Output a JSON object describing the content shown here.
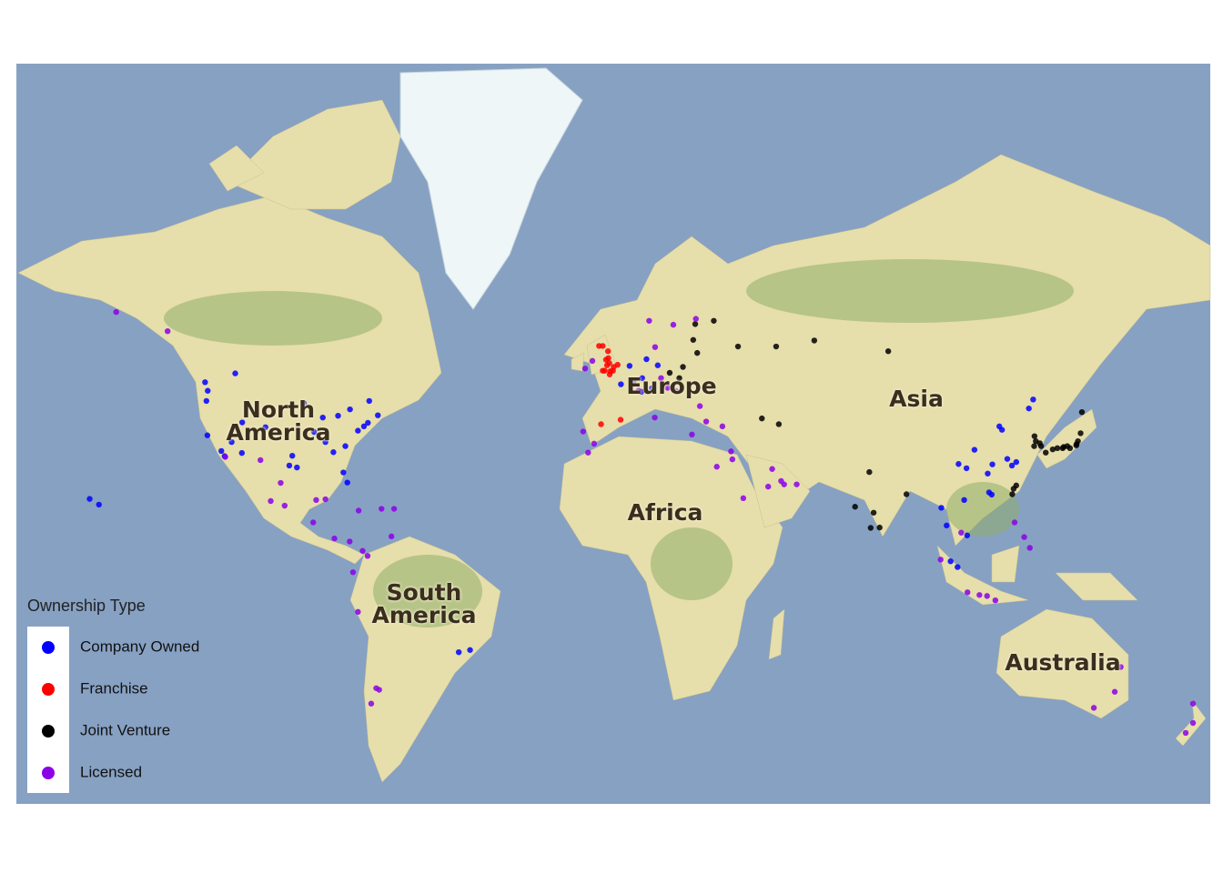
{
  "chart_data": {
    "type": "scatter",
    "projection": "mercator",
    "xlim": [
      -180,
      180
    ],
    "ylim": [
      -57,
      82
    ],
    "continent_labels": [
      "North America",
      "Europe",
      "Asia",
      "Africa",
      "South America",
      "Australia"
    ],
    "legend_title": "Ownership Type",
    "legend": "bottom-left",
    "series": [
      {
        "name": "Company Owned",
        "color": "#0000ff",
        "x": [
          -122.3,
          -122.4,
          -118.2,
          -117.2,
          -112,
          -104.9,
          -97.7,
          -95.4,
          -96.8,
          -87.6,
          -84.4,
          -80.2,
          -81.4,
          -74,
          -71,
          -77,
          -75.2,
          -83,
          -93.3,
          -90.2,
          -86.8,
          -80.8,
          -122.7,
          -111.9,
          -115.1,
          -123.1,
          -79.4,
          -73.6,
          -114,
          -157.9,
          -155.1,
          121.5,
          116.4,
          113.3,
          114.1,
          104.1,
          120.2,
          118.8,
          106.5,
          117.2,
          125.3,
          126.6,
          108.9,
          114.3,
          112.9,
          103.8,
          101.7,
          100.5,
          106.7,
          105.8,
          98.9,
          -46.6,
          -43.2,
          4.9,
          2.3,
          13.4,
          8.7,
          6.1,
          10,
          11.6,
          8.5
        ],
        "values": [
          47.6,
          37.8,
          34,
          32.7,
          33.5,
          39.7,
          30.3,
          29.8,
          32.8,
          41.9,
          33.7,
          25.8,
          28.5,
          40.7,
          42.4,
          38.9,
          39.9,
          42.3,
          45,
          38.6,
          36.2,
          35.2,
          45.5,
          40.8,
          36.2,
          49.3,
          43.7,
          45.5,
          51,
          21.3,
          19.7,
          31.2,
          39.9,
          23.1,
          22.5,
          30.7,
          30.3,
          32,
          29.6,
          39.1,
          43.9,
          45.8,
          34.3,
          30.6,
          28.2,
          1.35,
          3.1,
          13.7,
          10.8,
          21,
          18.8,
          -23.5,
          -22.9,
          52.4,
          48.9,
          52.5,
          50.1,
          49.6,
          53.6,
          48.1,
          47.4
        ]
      },
      {
        "name": "Franchise",
        "color": "#ff0000",
        "x": [
          -0.1,
          -2.2,
          -1.9,
          -3.2,
          -4.3,
          -1.5,
          0.1,
          -2.6,
          -1.1,
          -3.2,
          -1.6,
          -1.2,
          1.3,
          -0.9,
          -3.7,
          2.2
        ],
        "values": [
          51.5,
          53.5,
          52.5,
          55.9,
          55.9,
          53.8,
          52.2,
          51.5,
          50.8,
          51.5,
          55,
          52.9,
          52.6,
          51.4,
          40.4,
          41.4
        ]
      },
      {
        "name": "Joint Venture",
        "color": "#000000",
        "x": [
          139.7,
          135.5,
          130.4,
          141.3,
          140.9,
          136.9,
          132.5,
          135.8,
          139.6,
          133.9,
          137.7,
          140.1,
          127,
          129,
          128.6,
          126.9,
          127.4,
          121.5,
          120.3,
          120.7,
          37.6,
          30.3,
          49.1,
          60.6,
          82.9,
          21,
          17,
          19.9,
          24.1,
          25.3,
          24.7,
          72.9,
          77.2,
          77.6,
          80.3,
          78.5,
          88.4,
          44.8,
          49.9
        ],
        "values": [
          35.7,
          34.7,
          33.6,
          43.1,
          38.3,
          35.2,
          34.4,
          35,
          35.4,
          34.7,
          34.7,
          36.4,
          37.6,
          35.2,
          35.9,
          35.2,
          36.4,
          25,
          22.6,
          24.1,
          55.8,
          59.9,
          55.8,
          56.8,
          55,
          52.2,
          51.1,
          50.1,
          56.9,
          54.7,
          59.4,
          19.1,
          28.6,
          13,
          13.1,
          17.4,
          22.6,
          41.7,
          40.4
        ]
      },
      {
        "name": "Licensed",
        "color": "#8b00e8",
        "x": [
          -149.9,
          -134.4,
          -99.1,
          -103.3,
          -100.3,
          -106.4,
          -89.6,
          -86.8,
          -117,
          -90.5,
          -84.1,
          -79.5,
          -66.1,
          -69.9,
          -76.8,
          -74.1,
          -75.6,
          -78.5,
          -77,
          -70.6,
          -71.5,
          -73,
          -66.9,
          -6.3,
          -8.5,
          -9.1,
          12.5,
          23.7,
          28,
          32.9,
          26.1,
          19,
          16.4,
          14.4,
          10.8,
          18.1,
          12.6,
          24.9,
          35.5,
          35.9,
          46.7,
          55.3,
          51.5,
          50.6,
          47.9,
          31.2,
          39.2,
          -7.6,
          -5.8,
          121,
          123.9,
          125.6,
          106.8,
          110.4,
          112.7,
          115.2,
          98.7,
          104.9,
          151.2,
          153,
          144.9,
          174.8,
          172.6,
          174.8,
          7.6
        ],
        "values": [
          61.2,
          58.3,
          19.4,
          20.7,
          25.7,
          31.7,
          21,
          21.2,
          32.5,
          14.6,
          9.9,
          9,
          18.5,
          18.5,
          18,
          4.7,
          6.2,
          -0.2,
          -12,
          -33.4,
          -33,
          -36.8,
          10.5,
          53.3,
          51.9,
          38.7,
          41.9,
          38,
          41,
          39.9,
          44.4,
          47.5,
          48.2,
          50.1,
          59.9,
          59.3,
          55.7,
          60.2,
          33.9,
          31.9,
          24.7,
          25.3,
          25.3,
          26.2,
          29.4,
          30,
          21.5,
          33.6,
          35.8,
          14.6,
          10.3,
          7.1,
          -6.2,
          -7,
          -7.3,
          -8.6,
          3.6,
          11.6,
          -33.9,
          -27.5,
          -37.8,
          -36.8,
          -43.5,
          -41.3,
          47.6
        ]
      }
    ]
  }
}
